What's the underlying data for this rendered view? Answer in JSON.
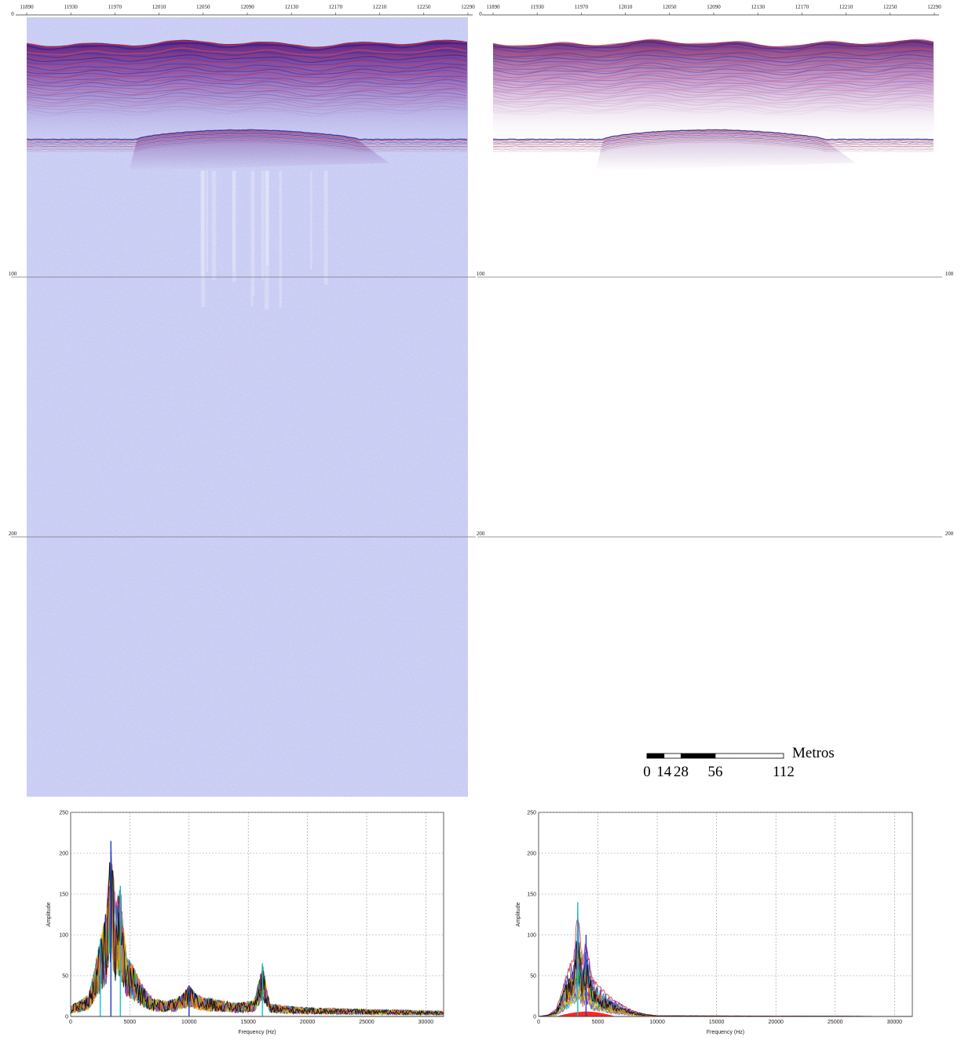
{
  "chart_data": [
    {
      "type": "heatmap",
      "panel": "seismic-profile-raw",
      "x_ticks": [
        "11890",
        "11930",
        "11970",
        "12010",
        "12050",
        "12090",
        "12130",
        "12170",
        "12210",
        "12250",
        "12290"
      ],
      "y_ticks": [
        "0",
        "100",
        "200"
      ],
      "x_range": [
        11890,
        12290
      ],
      "y_range": [
        0,
        300
      ],
      "colors": {
        "background": "#cdd0f5",
        "seafloor_high": "#c0304a",
        "seafloor_low": "#5a2f9e"
      },
      "reflector": {
        "seafloor_depth": 10,
        "subbottom_depth": 47
      }
    },
    {
      "type": "heatmap",
      "panel": "seismic-profile-filtered",
      "x_ticks": [
        "11890",
        "11930",
        "11970",
        "12010",
        "12050",
        "12090",
        "12130",
        "12170",
        "12210",
        "12250",
        "12290"
      ],
      "y_ticks": [
        "0",
        "100",
        "200"
      ],
      "x_range": [
        11890,
        12290
      ],
      "y_range": [
        0,
        300
      ],
      "colors": {
        "background": "#ffffff",
        "seafloor_high": "#b22a4a",
        "seafloor_low": "#6a2f8e"
      },
      "reflector": {
        "seafloor_depth": 10,
        "subbottom_depth": 47
      },
      "scale_bar": {
        "labels": [
          "0",
          "14",
          "28",
          "56",
          "112"
        ],
        "values": [
          0,
          14,
          28,
          56,
          112
        ],
        "unit": "Metros"
      }
    },
    {
      "type": "line",
      "panel": "spectrum-raw",
      "xlabel": "Frequency (Hz)",
      "ylabel": "Amplitude",
      "xlim": [
        0,
        31500
      ],
      "ylim": [
        0,
        250
      ],
      "x_ticks": [
        "0",
        "5000",
        "10000",
        "15000",
        "20000",
        "25000",
        "30000"
      ],
      "y_ticks": [
        "0",
        "50",
        "100",
        "150",
        "200",
        "250"
      ],
      "grid": true,
      "peaks": [
        {
          "x": 2500,
          "y": 95
        },
        {
          "x": 3400,
          "y": 215
        },
        {
          "x": 4200,
          "y": 160
        },
        {
          "x": 10000,
          "y": 38
        },
        {
          "x": 16200,
          "y": 65
        }
      ],
      "envelope_x": [
        0,
        800,
        1500,
        2000,
        2500,
        3000,
        3400,
        3800,
        4200,
        4700,
        5200,
        6000,
        7000,
        8000,
        9000,
        10000,
        11000,
        12000,
        14000,
        15500,
        16200,
        16800,
        18000,
        20000,
        25000,
        31500
      ],
      "envelope_y": [
        12,
        18,
        25,
        60,
        95,
        130,
        215,
        140,
        160,
        75,
        65,
        40,
        20,
        18,
        20,
        38,
        22,
        20,
        15,
        18,
        65,
        15,
        12,
        10,
        8,
        6
      ]
    },
    {
      "type": "line",
      "panel": "spectrum-filtered",
      "xlabel": "Frequency (Hz)",
      "ylabel": "Amplitude",
      "xlim": [
        0,
        31500
      ],
      "ylim": [
        0,
        250
      ],
      "x_ticks": [
        "0",
        "5000",
        "10000",
        "15000",
        "20000",
        "25000",
        "30000"
      ],
      "y_ticks": [
        "0",
        "50",
        "100",
        "150",
        "200",
        "250"
      ],
      "grid": true,
      "peaks": [
        {
          "x": 3300,
          "y": 140
        },
        {
          "x": 4000,
          "y": 100
        }
      ],
      "envelope_x": [
        0,
        800,
        1500,
        2000,
        2500,
        3000,
        3300,
        3700,
        4000,
        4500,
        5000,
        6000,
        7000,
        8000,
        9000,
        10000,
        31500
      ],
      "envelope_y": [
        0,
        2,
        10,
        35,
        60,
        80,
        140,
        70,
        100,
        50,
        40,
        25,
        15,
        7,
        3,
        1,
        0
      ]
    }
  ],
  "series_colors": [
    "#d62728",
    "#1f3fbf",
    "#2ca02c",
    "#17becf",
    "#e6d000",
    "#9b2fbf",
    "#ff7f0e",
    "#000000"
  ]
}
